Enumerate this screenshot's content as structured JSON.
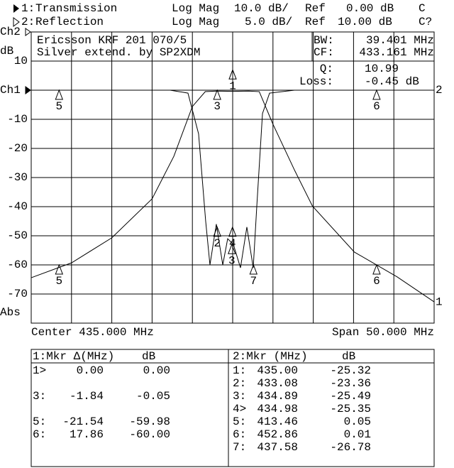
{
  "header": {
    "channels": [
      {
        "channel": "1:",
        "name": "Transmission",
        "format": "Log Mag",
        "scale": "10.0 dB/",
        "ref_label": "Ref",
        "ref": "0.00 dB",
        "flag": "C"
      },
      {
        "channel": "2:",
        "name": "Reflection",
        "format": "Log Mag",
        "scale": "5.0 dB/",
        "ref_label": "Ref",
        "ref": "10.00 dB",
        "flag": "C?"
      }
    ]
  },
  "chart_data": {
    "type": "line",
    "title_lines": [
      "Ericsson KRF 201 070/5",
      "Silver extend. by SP2XDM"
    ],
    "y_unit": "dB",
    "abs_label": "Abs",
    "stats": [
      {
        "label": "BW:",
        "value": "39.401 MHz"
      },
      {
        "label": "CF:",
        "value": "433.161 MHz"
      },
      {
        "label": "Q:",
        "value": "10.99"
      },
      {
        "label": "Loss:",
        "value": "-0.45 dB"
      }
    ],
    "center_label": "Center 435.000 MHz",
    "span_label": "Span 50.000 MHz",
    "xlim": [
      410,
      460
    ],
    "xgrid": [
      410,
      415,
      420,
      425,
      430,
      435,
      440,
      445,
      450,
      455,
      460
    ],
    "ylim": [
      -80,
      20
    ],
    "yticks": [
      {
        "value": 20,
        "label": "Ch2"
      },
      10,
      {
        "value": 0,
        "label": "Ch1"
      },
      -10,
      -20,
      -30,
      -40,
      -50,
      -60,
      -70
    ],
    "grid": true,
    "series": [
      {
        "name": "Transmission",
        "end_label": "1",
        "color": "#000000",
        "x": [
          410,
          415,
          420,
          425,
          427.7,
          430,
          431.6,
          433,
          435,
          437,
          438.3,
          440,
          442.7,
          444.9,
          450.1,
          455.4,
          460
        ],
        "values": [
          -64.4,
          -59.3,
          -50.7,
          -37.3,
          -22.7,
          -5.6,
          -0.5,
          -0.3,
          -0.4,
          -0.3,
          -0.5,
          -11.7,
          -27.6,
          -39.8,
          -55.6,
          -64.1,
          -72.7
        ]
      },
      {
        "name": "Reflection",
        "end_label": "2",
        "color": "#000000",
        "x": [
          427.25,
          429.45,
          430.77,
          431.65,
          432.18,
          432.97,
          433.77,
          434.38,
          435.09,
          435.97,
          436.76,
          437.55,
          437.99,
          438.7,
          439.58,
          442.66
        ],
        "values": [
          0,
          -1,
          -15,
          -45,
          -60,
          -46,
          -60,
          -51,
          -53,
          -61,
          -47,
          -61,
          -40,
          -8,
          -1,
          0
        ]
      }
    ],
    "markers": [
      {
        "label": "5",
        "x": 413.46,
        "y": 0
      },
      {
        "label": "3",
        "x": 433.08,
        "y": 0
      },
      {
        "label": "6",
        "x": 452.86,
        "y": 0
      },
      {
        "label": "1",
        "x": 435,
        "y": 7
      },
      {
        "label": "5",
        "x": 413.46,
        "y": -60
      },
      {
        "label": "6",
        "x": 452.86,
        "y": -60
      },
      {
        "label": "2",
        "x": 433.08,
        "y": -47
      },
      {
        "label": "4",
        "x": 434.98,
        "y": -47
      },
      {
        "label": "3",
        "x": 434.89,
        "y": -53
      },
      {
        "label": "7",
        "x": 437.58,
        "y": -60
      }
    ]
  },
  "tables": [
    {
      "header": [
        "1:Mkr Δ(MHz)",
        "dB"
      ],
      "rows": [
        [
          "1>",
          "0.00",
          "0.00"
        ],
        null,
        [
          "3:",
          "-1.84",
          "-0.05"
        ],
        null,
        [
          "5:",
          "-21.54",
          "-59.98"
        ],
        [
          "6:",
          "17.86",
          "-60.00"
        ]
      ]
    },
    {
      "header": [
        "2:Mkr (MHz)",
        "dB"
      ],
      "rows": [
        [
          "1:",
          "435.00",
          "-25.32"
        ],
        [
          "2:",
          "433.08",
          "-23.36"
        ],
        [
          "3:",
          "434.89",
          "-25.49"
        ],
        [
          "4>",
          "434.98",
          "-25.35"
        ],
        [
          "5:",
          "413.46",
          "0.05"
        ],
        [
          "6:",
          "452.86",
          "0.01"
        ],
        [
          "7:",
          "437.58",
          "-26.78"
        ]
      ]
    }
  ]
}
